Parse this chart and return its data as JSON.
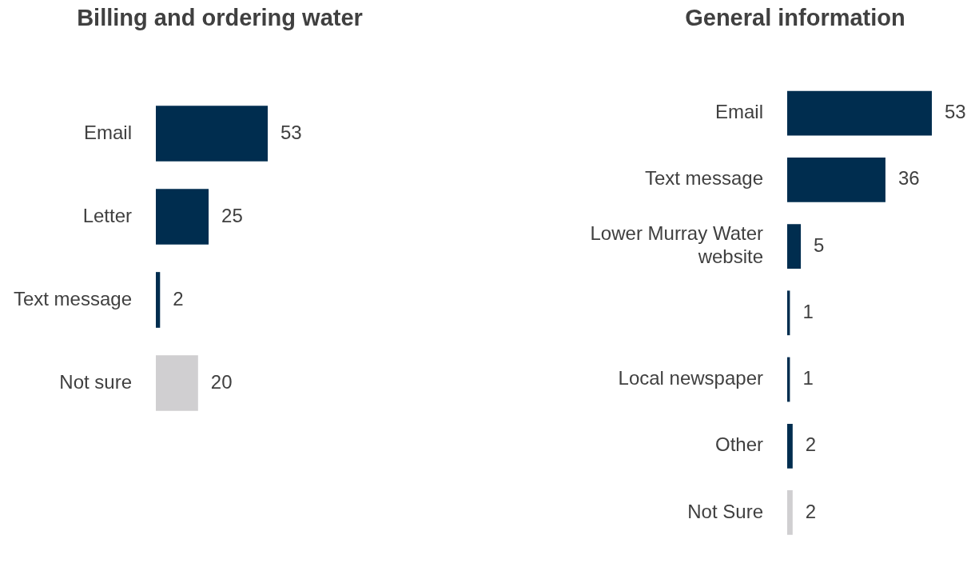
{
  "chart_data": [
    {
      "type": "bar",
      "orientation": "horizontal",
      "title": "Billing and ordering water",
      "categories": [
        "Email",
        "Letter",
        "Text message",
        "Not sure"
      ],
      "values": [
        53,
        25,
        2,
        20
      ],
      "colors": [
        "#002d4f",
        "#002d4f",
        "#002d4f",
        "#d0cfd1"
      ],
      "data_labels": true,
      "grid": false,
      "legend": false
    },
    {
      "type": "bar",
      "orientation": "horizontal",
      "title": "General information",
      "categories": [
        "Email",
        "Text message",
        "Lower Murray Water website",
        null,
        "Local newspaper",
        "Other",
        "Not Sure"
      ],
      "values": [
        53,
        36,
        5,
        1,
        1,
        2,
        2
      ],
      "colors": [
        "#002d4f",
        "#002d4f",
        "#002d4f",
        "#002d4f",
        "#002d4f",
        "#002d4f",
        "#d0cfd1"
      ],
      "data_labels": true,
      "grid": false,
      "legend": false
    }
  ]
}
